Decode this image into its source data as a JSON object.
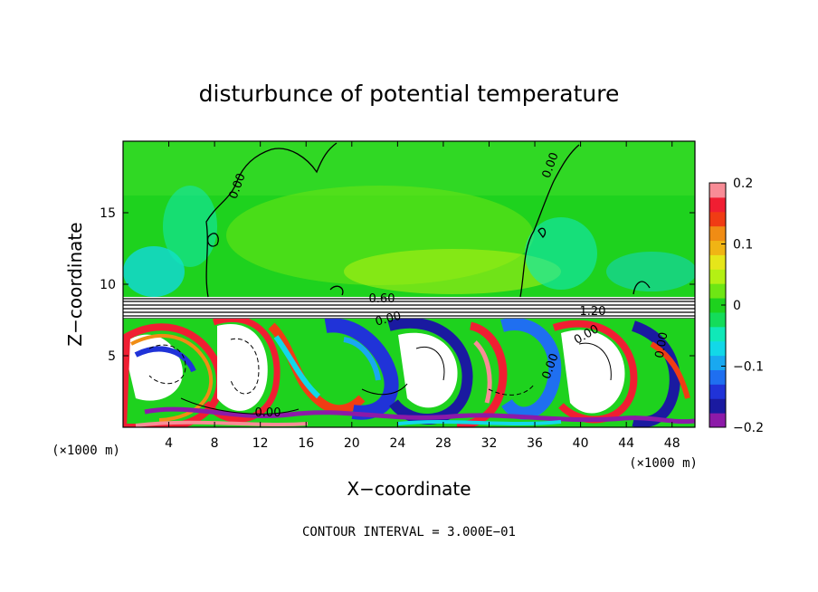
{
  "chart_data": {
    "type": "heatmap",
    "title": "disturbunce of potential temperature",
    "xlabel": "X−coordinate",
    "ylabel": "Z−coordinate",
    "x_unit": "(×1000 m)",
    "x_unit_right": "(×1000 m)",
    "xlim": [
      0,
      50
    ],
    "ylim": [
      0,
      20
    ],
    "x_ticks": [
      4,
      8,
      12,
      16,
      20,
      24,
      28,
      32,
      36,
      40,
      44,
      48
    ],
    "y_ticks": [
      5,
      10,
      15
    ],
    "colorbar": {
      "vmin": -0.2,
      "vmax": 0.2,
      "ticks": [
        {
          "value": 0.2,
          "label": "0.2"
        },
        {
          "value": 0.1,
          "label": "0.1"
        },
        {
          "value": 0.0,
          "label": "0"
        },
        {
          "value": -0.1,
          "label": "−0.1"
        },
        {
          "value": -0.2,
          "label": "−0.2"
        }
      ],
      "colors": [
        "#8c1aa8",
        "#1a1aa0",
        "#2033d8",
        "#1f6ff0",
        "#19a8f0",
        "#12d8e8",
        "#10e8b8",
        "#14dc5a",
        "#1ed21e",
        "#6ee614",
        "#b4f014",
        "#e6e61a",
        "#f0b414",
        "#f08c14",
        "#f03c14",
        "#f01e32",
        "#f88c96"
      ]
    },
    "contour_interval": "CONTOUR INTERVAL = 3.000E−01",
    "contour_labels": [
      "0.00",
      "0.00",
      "0.60",
      "1.20",
      "0.00",
      "0.00",
      "0.00",
      "0.00",
      "0.00"
    ]
  }
}
